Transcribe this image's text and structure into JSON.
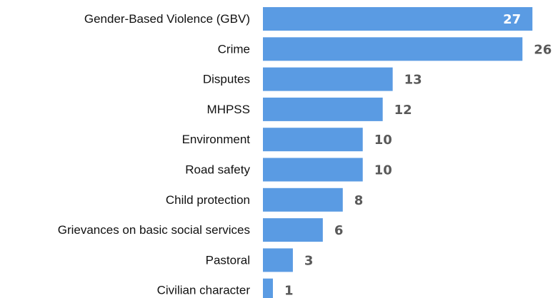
{
  "chart_data": {
    "type": "bar",
    "orientation": "horizontal",
    "categories": [
      "Gender-Based Violence (GBV)",
      "Crime",
      "Disputes",
      "MHPSS",
      "Environment",
      "Road safety",
      "Child protection",
      "Grievances on basic social services",
      "Pastoral",
      "Civilian character"
    ],
    "values": [
      27,
      26,
      13,
      12,
      10,
      10,
      8,
      6,
      3,
      1
    ],
    "title": "",
    "xlabel": "",
    "ylabel": "",
    "xlim": [
      0,
      27.7
    ],
    "grid": false,
    "legend": "none",
    "bar_color": "#5a9be3",
    "label_color": "#595959",
    "inside_label_color": "#ffffff"
  }
}
